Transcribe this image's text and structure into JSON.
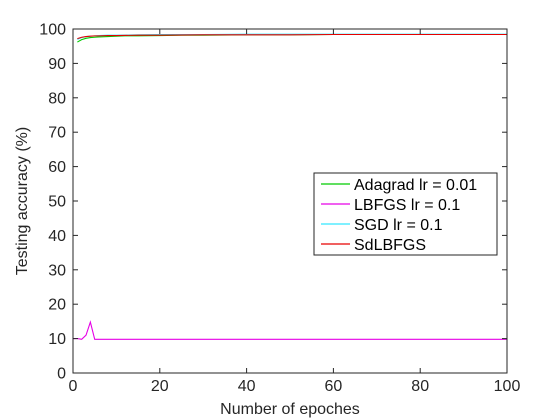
{
  "chart_data": {
    "type": "line",
    "title": "",
    "xlabel": "Number of epoches",
    "ylabel": "Testing accuracy (%)",
    "xlim": [
      0,
      100
    ],
    "ylim": [
      0,
      100
    ],
    "xticks": [
      0,
      20,
      40,
      60,
      80,
      100
    ],
    "yticks": [
      0,
      10,
      20,
      30,
      40,
      50,
      60,
      70,
      80,
      90,
      100
    ],
    "grid": false,
    "legend_position": "right, middle",
    "series": [
      {
        "name": "Adagrad lr = 0.01",
        "color": "#00cc00",
        "x": [
          1,
          2,
          3,
          4,
          5,
          6,
          8,
          10,
          12,
          15,
          20,
          25,
          30,
          40,
          50,
          60,
          70,
          80,
          90,
          100
        ],
        "values": [
          96.2,
          96.9,
          97.3,
          97.5,
          97.6,
          97.7,
          97.8,
          97.9,
          98.0,
          98.0,
          98.1,
          98.2,
          98.2,
          98.3,
          98.3,
          98.4,
          98.4,
          98.4,
          98.4,
          98.4
        ]
      },
      {
        "name": "LBFGS lr = 0.1",
        "color": "#e600e6",
        "x": [
          0,
          1,
          2,
          3,
          4,
          5,
          6,
          10,
          20,
          40,
          60,
          80,
          100
        ],
        "values": [
          10.0,
          10.0,
          9.8,
          11.0,
          14.8,
          9.8,
          9.8,
          9.8,
          9.8,
          9.8,
          9.8,
          9.8,
          9.8
        ]
      },
      {
        "name": "SGD lr = 0.1",
        "color": "#33e6ff",
        "x": [
          1,
          2,
          3,
          4,
          5,
          6,
          8,
          10,
          15,
          20,
          30,
          40,
          50,
          60,
          70,
          80,
          90,
          100
        ],
        "values": [
          97.0,
          97.5,
          97.8,
          97.9,
          98.0,
          98.1,
          98.2,
          98.2,
          98.3,
          98.4,
          98.4,
          98.5,
          98.5,
          98.5,
          98.5,
          98.5,
          98.5,
          98.5
        ]
      },
      {
        "name": "SdLBFGS",
        "color": "#e60000",
        "x": [
          1,
          2,
          3,
          4,
          5,
          6,
          8,
          10,
          15,
          20,
          30,
          40,
          50,
          60,
          70,
          80,
          90,
          100
        ],
        "values": [
          97.2,
          97.6,
          97.8,
          97.9,
          98.0,
          98.0,
          98.1,
          98.1,
          98.2,
          98.2,
          98.3,
          98.3,
          98.3,
          98.4,
          98.4,
          98.4,
          98.4,
          98.4
        ]
      }
    ]
  }
}
